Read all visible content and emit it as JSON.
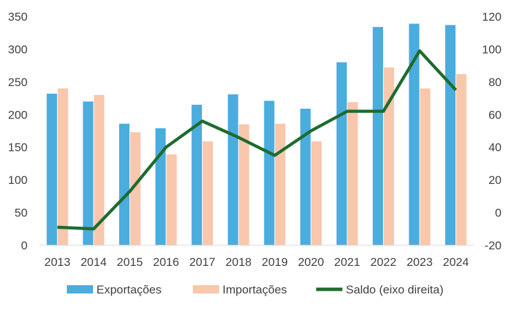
{
  "chart_data": {
    "type": "bar",
    "categories": [
      "2013",
      "2014",
      "2015",
      "2016",
      "2017",
      "2018",
      "2019",
      "2020",
      "2021",
      "2022",
      "2023",
      "2024"
    ],
    "series": [
      {
        "name": "Exportações",
        "type": "bar",
        "axis": "left",
        "color": "#4BACDE",
        "values": [
          232,
          220,
          186,
          179,
          215,
          231,
          221,
          209,
          280,
          334,
          339,
          337
        ]
      },
      {
        "name": "Importações",
        "type": "bar",
        "axis": "left",
        "color": "#F8C7AC",
        "values": [
          240,
          230,
          173,
          139,
          159,
          185,
          186,
          159,
          219,
          272,
          240,
          262
        ]
      },
      {
        "name": "Saldo (eixo direita)",
        "type": "line",
        "axis": "right",
        "color": "#1E6B2E",
        "values": [
          -9,
          -10,
          13,
          40,
          56,
          46,
          35,
          50,
          62,
          62,
          99,
          75
        ]
      }
    ],
    "y_left": {
      "min": 0,
      "max": 350,
      "ticks": [
        0,
        50,
        100,
        150,
        200,
        250,
        300,
        350
      ]
    },
    "y_right": {
      "min": -20,
      "max": 120,
      "ticks": [
        -20,
        0,
        20,
        40,
        60,
        80,
        100,
        120
      ]
    },
    "grid": false,
    "legend": "bottom"
  }
}
